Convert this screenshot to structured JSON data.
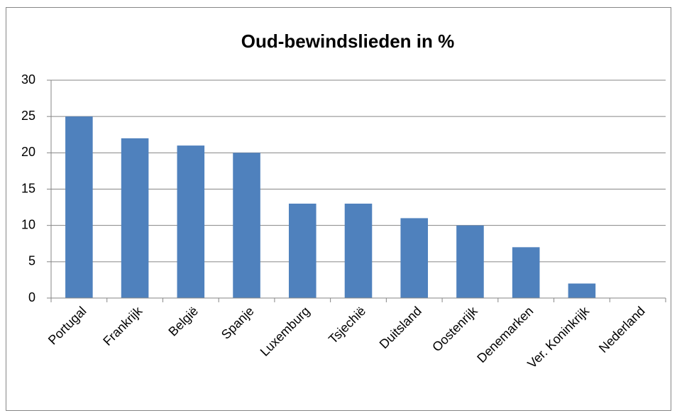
{
  "chart_data": {
    "type": "bar",
    "title": "Oud-bewindslieden in %",
    "categories": [
      "Portugal",
      "Frankrijk",
      "België",
      "Spanje",
      "Luxemburg",
      "Tsjechië",
      "Duitsland",
      "Oostenrijk",
      "Denemarken",
      "Ver. Koninkrijk",
      "Nederland"
    ],
    "values": [
      25,
      22,
      21,
      20,
      13,
      13,
      11,
      10,
      7,
      2,
      0
    ],
    "color": "#4f81bd",
    "ylim": [
      0,
      30
    ],
    "yticks": [
      0,
      5,
      10,
      15,
      20,
      25,
      30
    ],
    "grid": true
  }
}
